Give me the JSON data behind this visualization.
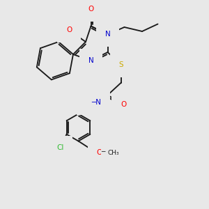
{
  "bg": "#e8e8e8",
  "bond_color": "#1a1a1a",
  "lw": 1.35,
  "atom_colors": {
    "O": "#ff0000",
    "N": "#0000cc",
    "S": "#ccaa00",
    "Cl": "#33bb33",
    "H": "#339999"
  },
  "fs": 7.5,
  "dbl_off": 0.08
}
